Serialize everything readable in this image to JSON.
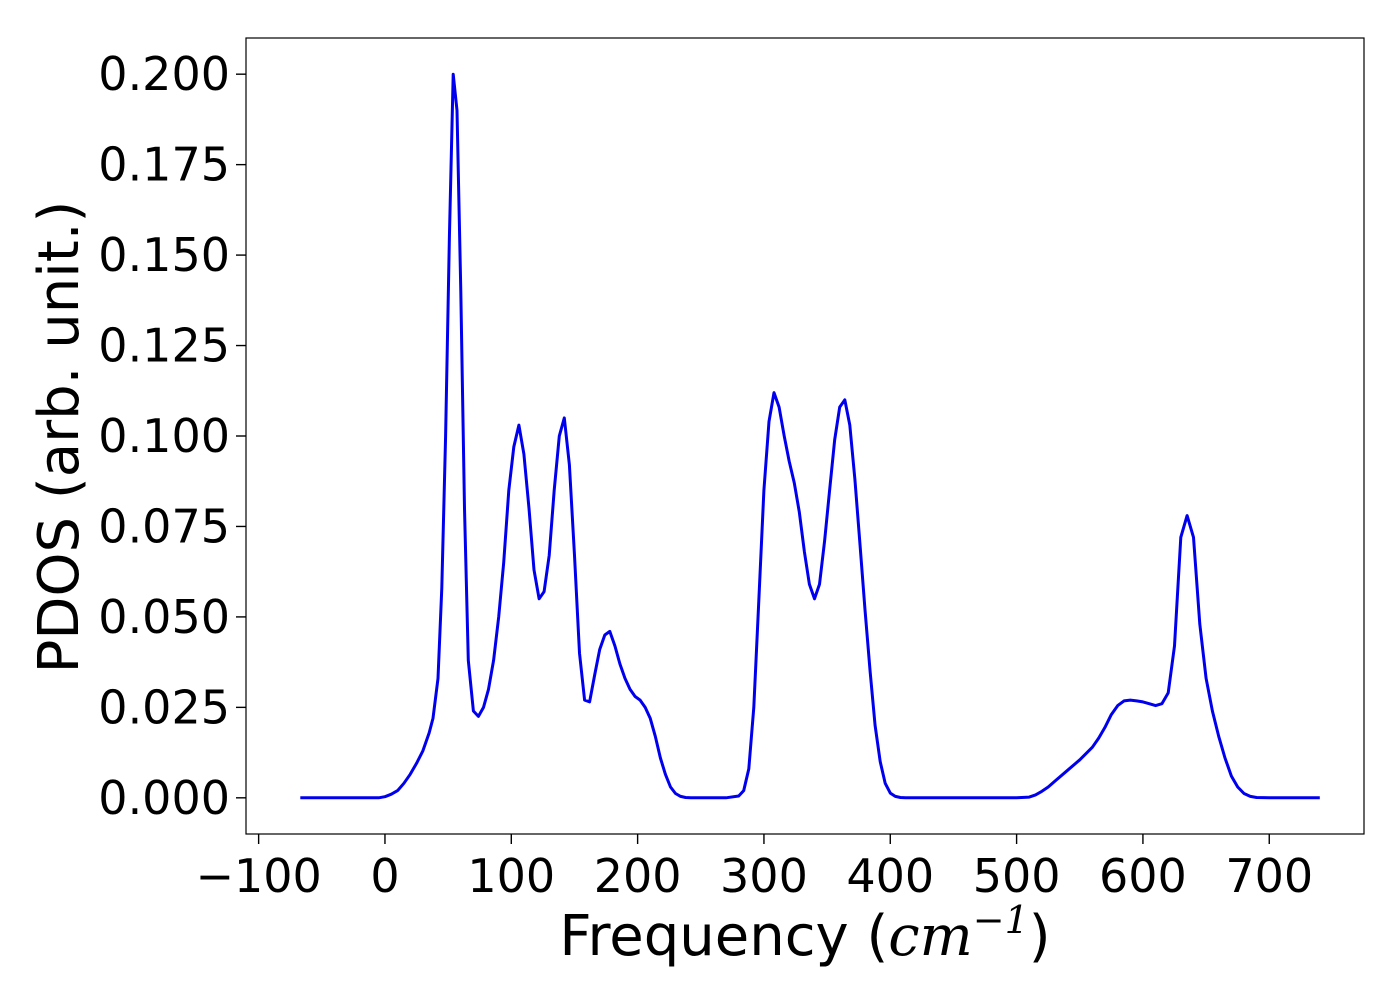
{
  "chart_data": {
    "type": "line",
    "xlabel": "Frequency",
    "xlabel_unit_base": "cm",
    "xlabel_unit_exp": "−1",
    "ylabel": "PDOS (arb. unit.)",
    "xlim": [
      -110,
      775
    ],
    "ylim": [
      -0.01,
      0.21
    ],
    "xticks": [
      -100,
      0,
      100,
      200,
      300,
      400,
      500,
      600,
      700
    ],
    "xtick_labels": [
      "−100",
      "0",
      "100",
      "200",
      "300",
      "400",
      "500",
      "600",
      "700"
    ],
    "yticks": [
      0.0,
      0.025,
      0.05,
      0.075,
      0.1,
      0.125,
      0.15,
      0.175,
      0.2
    ],
    "ytick_labels": [
      "0.000",
      "0.025",
      "0.050",
      "0.075",
      "0.100",
      "0.125",
      "0.150",
      "0.175",
      "0.200"
    ],
    "grid": false,
    "series": [
      {
        "color": "#0000ee",
        "x": [
          -67,
          -20,
          -5,
          0,
          5,
          10,
          15,
          20,
          25,
          30,
          35,
          38,
          42,
          45,
          48,
          51,
          54,
          57,
          60,
          63,
          66,
          70,
          74,
          78,
          82,
          86,
          90,
          94,
          98,
          102,
          106,
          110,
          114,
          118,
          122,
          126,
          130,
          134,
          138,
          142,
          146,
          150,
          154,
          158,
          162,
          166,
          170,
          174,
          178,
          182,
          186,
          190,
          194,
          198,
          202,
          206,
          210,
          214,
          218,
          222,
          226,
          230,
          234,
          238,
          242,
          246,
          250,
          260,
          270,
          280,
          284,
          288,
          292,
          296,
          300,
          304,
          308,
          312,
          316,
          320,
          324,
          328,
          332,
          336,
          340,
          344,
          348,
          352,
          356,
          360,
          364,
          368,
          372,
          376,
          380,
          384,
          388,
          392,
          396,
          400,
          404,
          408,
          412,
          416,
          420,
          430,
          500,
          510,
          515,
          520,
          525,
          530,
          540,
          550,
          560,
          565,
          570,
          575,
          580,
          585,
          590,
          595,
          600,
          605,
          610,
          615,
          620,
          625,
          630,
          635,
          640,
          645,
          650,
          655,
          660,
          665,
          670,
          675,
          680,
          685,
          690,
          700,
          740
        ],
        "y": [
          0.0,
          0.0,
          0.0,
          0.0003,
          0.001,
          0.002,
          0.004,
          0.0065,
          0.0095,
          0.013,
          0.018,
          0.022,
          0.033,
          0.058,
          0.1,
          0.155,
          0.2,
          0.19,
          0.14,
          0.08,
          0.038,
          0.024,
          0.0225,
          0.025,
          0.03,
          0.038,
          0.05,
          0.065,
          0.085,
          0.097,
          0.103,
          0.095,
          0.08,
          0.063,
          0.055,
          0.057,
          0.067,
          0.085,
          0.1,
          0.105,
          0.092,
          0.067,
          0.04,
          0.027,
          0.0265,
          0.034,
          0.041,
          0.045,
          0.046,
          0.042,
          0.037,
          0.033,
          0.03,
          0.028,
          0.027,
          0.025,
          0.022,
          0.017,
          0.011,
          0.0065,
          0.003,
          0.0012,
          0.0004,
          0.0001,
          0.0,
          0.0,
          0.0,
          0.0,
          0.0,
          0.0005,
          0.002,
          0.008,
          0.025,
          0.055,
          0.085,
          0.104,
          0.112,
          0.108,
          0.1,
          0.093,
          0.087,
          0.079,
          0.068,
          0.059,
          0.055,
          0.059,
          0.071,
          0.085,
          0.099,
          0.108,
          0.11,
          0.103,
          0.088,
          0.07,
          0.052,
          0.035,
          0.02,
          0.01,
          0.004,
          0.0013,
          0.0004,
          0.0001,
          0.0,
          0.0,
          0.0,
          0.0,
          0.0,
          0.0002,
          0.0008,
          0.0018,
          0.003,
          0.0045,
          0.0075,
          0.0105,
          0.014,
          0.0165,
          0.0195,
          0.023,
          0.0255,
          0.0268,
          0.027,
          0.0268,
          0.0265,
          0.026,
          0.0255,
          0.026,
          0.029,
          0.042,
          0.072,
          0.078,
          0.072,
          0.048,
          0.033,
          0.024,
          0.017,
          0.011,
          0.006,
          0.003,
          0.0012,
          0.0004,
          0.0001,
          0.0,
          0.0
        ]
      }
    ]
  }
}
